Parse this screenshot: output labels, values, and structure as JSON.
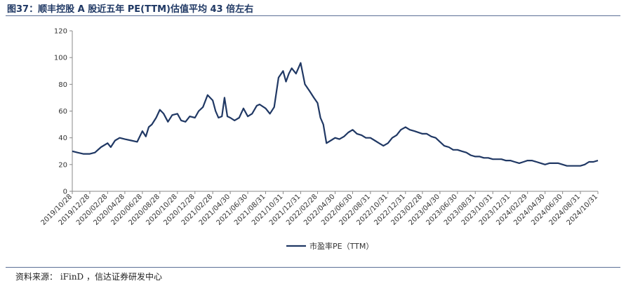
{
  "header": {
    "title": "图37：顺丰控股 A 股近五年 PE(TTM)估值平均 43 倍左右"
  },
  "footer": {
    "source": "资料来源：  iFinD ，信达证券研发中心"
  },
  "chart_data": {
    "type": "line",
    "title": "图37：顺丰控股 A 股近五年 PE(TTM)估值平均 43 倍左右",
    "xlabel": "",
    "ylabel": "",
    "ylim": [
      0,
      120
    ],
    "yticks": [
      0,
      20,
      40,
      60,
      80,
      100,
      120
    ],
    "xlim": [
      "2019-10-28",
      "2024-10-31"
    ],
    "grid": false,
    "legend": "bottom-center",
    "line_color": "#203864",
    "categories": [
      "2019/10/28",
      "2019/12/28",
      "2020/02/28",
      "2020/04/28",
      "2020/06/28",
      "2020/08/28",
      "2020/10/28",
      "2020/12/28",
      "2021/02/28",
      "2021/04/30",
      "2021/06/30",
      "2021/08/31",
      "2021/10/31",
      "2021/12/31",
      "2022/02/28",
      "2022/04/30",
      "2022/06/30",
      "2022/08/31",
      "2022/10/31",
      "2022/12/31",
      "2023/02/28",
      "2023/04/30",
      "2023/06/30",
      "2023/08/31",
      "2023/10/31",
      "2023/12/31",
      "2024/02/29",
      "2024/04/30",
      "2024/06/30",
      "2024/08/31",
      "2024/10/31"
    ],
    "series": [
      {
        "name": "市盈率PE（TTM）",
        "points": [
          [
            "2019-10-28",
            30
          ],
          [
            "2019-11-15",
            29
          ],
          [
            "2019-12-05",
            28
          ],
          [
            "2019-12-28",
            28
          ],
          [
            "2020-01-15",
            29
          ],
          [
            "2020-02-05",
            33
          ],
          [
            "2020-02-28",
            36
          ],
          [
            "2020-03-10",
            33
          ],
          [
            "2020-03-25",
            38
          ],
          [
            "2020-04-10",
            40
          ],
          [
            "2020-04-28",
            39
          ],
          [
            "2020-05-20",
            38
          ],
          [
            "2020-06-10",
            37
          ],
          [
            "2020-06-28",
            45
          ],
          [
            "2020-07-10",
            41
          ],
          [
            "2020-07-20",
            48
          ],
          [
            "2020-07-31",
            50
          ],
          [
            "2020-08-15",
            55
          ],
          [
            "2020-08-28",
            61
          ],
          [
            "2020-09-10",
            58
          ],
          [
            "2020-09-25",
            52
          ],
          [
            "2020-10-10",
            57
          ],
          [
            "2020-10-28",
            58
          ],
          [
            "2020-11-10",
            53
          ],
          [
            "2020-11-25",
            52
          ],
          [
            "2020-12-10",
            56
          ],
          [
            "2020-12-28",
            55
          ],
          [
            "2021-01-10",
            60
          ],
          [
            "2021-01-25",
            63
          ],
          [
            "2021-02-10",
            72
          ],
          [
            "2021-02-28",
            68
          ],
          [
            "2021-03-10",
            60
          ],
          [
            "2021-03-20",
            55
          ],
          [
            "2021-04-01",
            56
          ],
          [
            "2021-04-10",
            70
          ],
          [
            "2021-04-20",
            56
          ],
          [
            "2021-04-30",
            55
          ],
          [
            "2021-05-15",
            53
          ],
          [
            "2021-05-31",
            55
          ],
          [
            "2021-06-15",
            62
          ],
          [
            "2021-06-30",
            56
          ],
          [
            "2021-07-15",
            58
          ],
          [
            "2021-07-31",
            64
          ],
          [
            "2021-08-10",
            65
          ],
          [
            "2021-08-31",
            62
          ],
          [
            "2021-09-15",
            58
          ],
          [
            "2021-09-30",
            63
          ],
          [
            "2021-10-15",
            85
          ],
          [
            "2021-10-31",
            90
          ],
          [
            "2021-11-10",
            82
          ],
          [
            "2021-11-20",
            88
          ],
          [
            "2021-11-30",
            92
          ],
          [
            "2021-12-15",
            88
          ],
          [
            "2021-12-31",
            96
          ],
          [
            "2022-01-15",
            80
          ],
          [
            "2022-01-31",
            75
          ],
          [
            "2022-02-15",
            70
          ],
          [
            "2022-02-28",
            66
          ],
          [
            "2022-03-10",
            55
          ],
          [
            "2022-03-20",
            50
          ],
          [
            "2022-03-31",
            36
          ],
          [
            "2022-04-15",
            38
          ],
          [
            "2022-04-30",
            40
          ],
          [
            "2022-05-15",
            39
          ],
          [
            "2022-05-31",
            41
          ],
          [
            "2022-06-15",
            44
          ],
          [
            "2022-06-30",
            46
          ],
          [
            "2022-07-15",
            43
          ],
          [
            "2022-07-31",
            42
          ],
          [
            "2022-08-15",
            40
          ],
          [
            "2022-08-31",
            40
          ],
          [
            "2022-09-15",
            38
          ],
          [
            "2022-09-30",
            36
          ],
          [
            "2022-10-15",
            34
          ],
          [
            "2022-10-31",
            36
          ],
          [
            "2022-11-15",
            40
          ],
          [
            "2022-11-30",
            42
          ],
          [
            "2022-12-15",
            46
          ],
          [
            "2022-12-31",
            48
          ],
          [
            "2023-01-15",
            46
          ],
          [
            "2023-01-31",
            45
          ],
          [
            "2023-02-28",
            43
          ],
          [
            "2023-03-15",
            43
          ],
          [
            "2023-03-31",
            41
          ],
          [
            "2023-04-15",
            40
          ],
          [
            "2023-04-30",
            37
          ],
          [
            "2023-05-15",
            34
          ],
          [
            "2023-05-31",
            33
          ],
          [
            "2023-06-15",
            31
          ],
          [
            "2023-06-30",
            31
          ],
          [
            "2023-07-15",
            30
          ],
          [
            "2023-07-31",
            29
          ],
          [
            "2023-08-15",
            27
          ],
          [
            "2023-08-31",
            26
          ],
          [
            "2023-09-15",
            26
          ],
          [
            "2023-09-30",
            25
          ],
          [
            "2023-10-15",
            25
          ],
          [
            "2023-10-31",
            24
          ],
          [
            "2023-11-30",
            24
          ],
          [
            "2023-12-15",
            23
          ],
          [
            "2023-12-31",
            23
          ],
          [
            "2024-01-15",
            22
          ],
          [
            "2024-01-31",
            21
          ],
          [
            "2024-02-15",
            22
          ],
          [
            "2024-02-29",
            23
          ],
          [
            "2024-03-15",
            23
          ],
          [
            "2024-03-31",
            22
          ],
          [
            "2024-04-15",
            21
          ],
          [
            "2024-04-30",
            20
          ],
          [
            "2024-05-15",
            21
          ],
          [
            "2024-05-31",
            21
          ],
          [
            "2024-06-15",
            21
          ],
          [
            "2024-06-30",
            20
          ],
          [
            "2024-07-15",
            19
          ],
          [
            "2024-07-31",
            19
          ],
          [
            "2024-08-15",
            19
          ],
          [
            "2024-08-31",
            19
          ],
          [
            "2024-09-15",
            20
          ],
          [
            "2024-09-30",
            22
          ],
          [
            "2024-10-15",
            22
          ],
          [
            "2024-10-31",
            23
          ]
        ]
      }
    ]
  }
}
